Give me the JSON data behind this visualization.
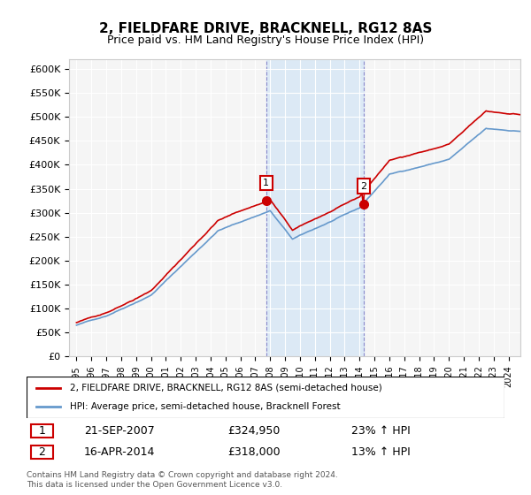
{
  "title": "2, FIELDFARE DRIVE, BRACKNELL, RG12 8AS",
  "subtitle": "Price paid vs. HM Land Registry's House Price Index (HPI)",
  "ylim": [
    0,
    620000
  ],
  "yticks": [
    0,
    50000,
    100000,
    150000,
    200000,
    250000,
    300000,
    350000,
    400000,
    450000,
    500000,
    550000,
    600000
  ],
  "property_color": "#cc0000",
  "hpi_color": "#6699cc",
  "transaction1_date": "21-SEP-2007",
  "transaction1_price": 324950,
  "transaction1_hpi": "23% ↑ HPI",
  "transaction1_x": 2007.73,
  "transaction2_date": "16-APR-2014",
  "transaction2_price": 318000,
  "transaction2_hpi": "13% ↑ HPI",
  "transaction2_x": 2014.29,
  "legend_property": "2, FIELDFARE DRIVE, BRACKNELL, RG12 8AS (semi-detached house)",
  "legend_hpi": "HPI: Average price, semi-detached house, Bracknell Forest",
  "footnote": "Contains HM Land Registry data © Crown copyright and database right 2024.\nThis data is licensed under the Open Government Licence v3.0.",
  "background_color": "#ffffff",
  "plot_bg_color": "#f5f5f5",
  "grid_color": "#ffffff",
  "highlight_bg": "#dce9f5"
}
